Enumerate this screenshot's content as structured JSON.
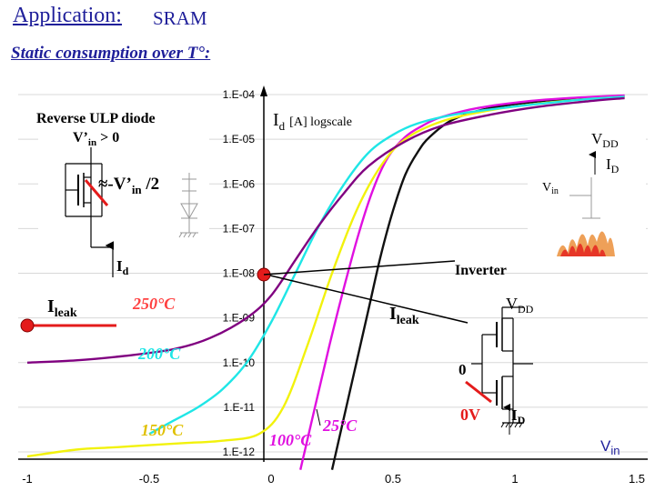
{
  "title": {
    "main": "Application:",
    "sub": "SRAM"
  },
  "subtitle": "Static consumption over T°:",
  "colors": {
    "title": "#1f1f9a",
    "c25": "#111111",
    "c100": "#e010e0",
    "c150": "#f2f20c",
    "c200": "#1fe6e6",
    "c250": "#800080",
    "red": "#e41b1b",
    "label250": "#ff4040",
    "label150": "#e0c000"
  },
  "chart_data": {
    "type": "line",
    "title": "Id [A] logscale",
    "xlabel": "Vin",
    "ylabel": "Id [A] logscale",
    "xlim": [
      -1,
      1.5
    ],
    "ylim": [
      -12,
      -4
    ],
    "x_ticks": [
      -1,
      -0.5,
      0,
      0.5,
      1,
      1.5
    ],
    "x_tick_labels": [
      "-1",
      "-0.5",
      "0",
      "0.5",
      "1",
      "1.5"
    ],
    "y_ticks": [
      -4,
      -5,
      -6,
      -7,
      -8,
      -9,
      -10,
      -11,
      -12
    ],
    "y_tick_labels": [
      "1.E-04",
      "1.E-05",
      "1.E-06",
      "1.E-07",
      "1.E-08",
      "1.E-09",
      "1.E-10",
      "1.E-11",
      "1.E-12"
    ],
    "series": [
      {
        "name": "25°C",
        "color": "#111111",
        "x": [
          0.25,
          0.3,
          0.35,
          0.4,
          0.45,
          0.5,
          0.55,
          0.6,
          0.65,
          0.75,
          0.9,
          1.1,
          1.3,
          1.45
        ],
        "y": [
          -12.4,
          -11.2,
          -10.0,
          -8.8,
          -7.6,
          -6.6,
          -5.8,
          -5.3,
          -4.95,
          -4.55,
          -4.3,
          -4.15,
          -4.07,
          -4.03
        ]
      },
      {
        "name": "100°C",
        "color": "#e010e0",
        "x": [
          0.12,
          0.18,
          0.24,
          0.3,
          0.36,
          0.42,
          0.48,
          0.55,
          0.62,
          0.7,
          0.85,
          1.05,
          1.25,
          1.45
        ],
        "y": [
          -12.4,
          -11.0,
          -9.6,
          -8.3,
          -7.1,
          -6.1,
          -5.4,
          -4.95,
          -4.7,
          -4.5,
          -4.3,
          -4.15,
          -4.07,
          -4.02
        ]
      },
      {
        "name": "150°C",
        "color": "#f2f20c",
        "x": [
          -1.0,
          -0.8,
          -0.65,
          -0.5,
          -0.35,
          -0.2,
          -0.05,
          0.05,
          0.15,
          0.25,
          0.35,
          0.45,
          0.55,
          0.7,
          0.9,
          1.1,
          1.3,
          1.45
        ],
        "y": [
          -12.1,
          -11.95,
          -11.9,
          -11.85,
          -11.8,
          -11.75,
          -11.6,
          -11.0,
          -9.6,
          -8.0,
          -6.6,
          -5.6,
          -5.0,
          -4.6,
          -4.35,
          -4.2,
          -4.1,
          -4.05
        ]
      },
      {
        "name": "200°C",
        "color": "#1fe6e6",
        "x": [
          -0.5,
          -0.4,
          -0.3,
          -0.2,
          -0.1,
          0.0,
          0.1,
          0.2,
          0.3,
          0.4,
          0.5,
          0.6,
          0.75,
          0.95,
          1.15,
          1.3,
          1.45
        ],
        "y": [
          -11.6,
          -11.3,
          -11.0,
          -10.6,
          -10.0,
          -9.1,
          -8.0,
          -6.9,
          -6.0,
          -5.3,
          -4.9,
          -4.65,
          -4.45,
          -4.3,
          -4.18,
          -4.1,
          -4.05
        ]
      },
      {
        "name": "250°C",
        "color": "#800080",
        "x": [
          -1.0,
          -0.8,
          -0.6,
          -0.4,
          -0.25,
          -0.1,
          0.0,
          0.1,
          0.2,
          0.3,
          0.4,
          0.55,
          0.7,
          0.9,
          1.1,
          1.3,
          1.45
        ],
        "y": [
          -10.0,
          -9.95,
          -9.85,
          -9.7,
          -9.45,
          -9.0,
          -8.5,
          -7.7,
          -6.9,
          -6.2,
          -5.6,
          -5.05,
          -4.7,
          -4.45,
          -4.27,
          -4.15,
          -4.08
        ]
      }
    ]
  },
  "labels": {
    "id_axis": "I",
    "id_axis_sub": "d",
    "id_axis_rest": "[A] logscale",
    "vin_axis": "V",
    "vin_axis_sub": "in",
    "t25": "25°C",
    "t100": "100°C",
    "t150": "150°C",
    "t200": "200°C",
    "t250": "250°C",
    "ileak_left": "I",
    "ileak_left_sub": "leak",
    "ileak_right": "I",
    "ileak_right_sub": "leak",
    "inverter": "Inverter"
  },
  "left_circuit": {
    "title": "Reverse ULP diode",
    "cond_v": "V’",
    "cond_sub": "in",
    "cond_rest": " > 0",
    "approx": "≈-V’",
    "approx_sub": "in",
    "approx_rest": " /2",
    "id": "I",
    "id_sub": "d"
  },
  "right_top": {
    "vdd": "V",
    "vdd_sub": "DD",
    "id": "I",
    "id_sub": "D",
    "vin": "V",
    "vin_sub": "in"
  },
  "right_bottom": {
    "vdd": "V",
    "vdd_sub": "DD",
    "zero": "0",
    "zerov": "0V",
    "id": "I",
    "id_sub": "D"
  }
}
